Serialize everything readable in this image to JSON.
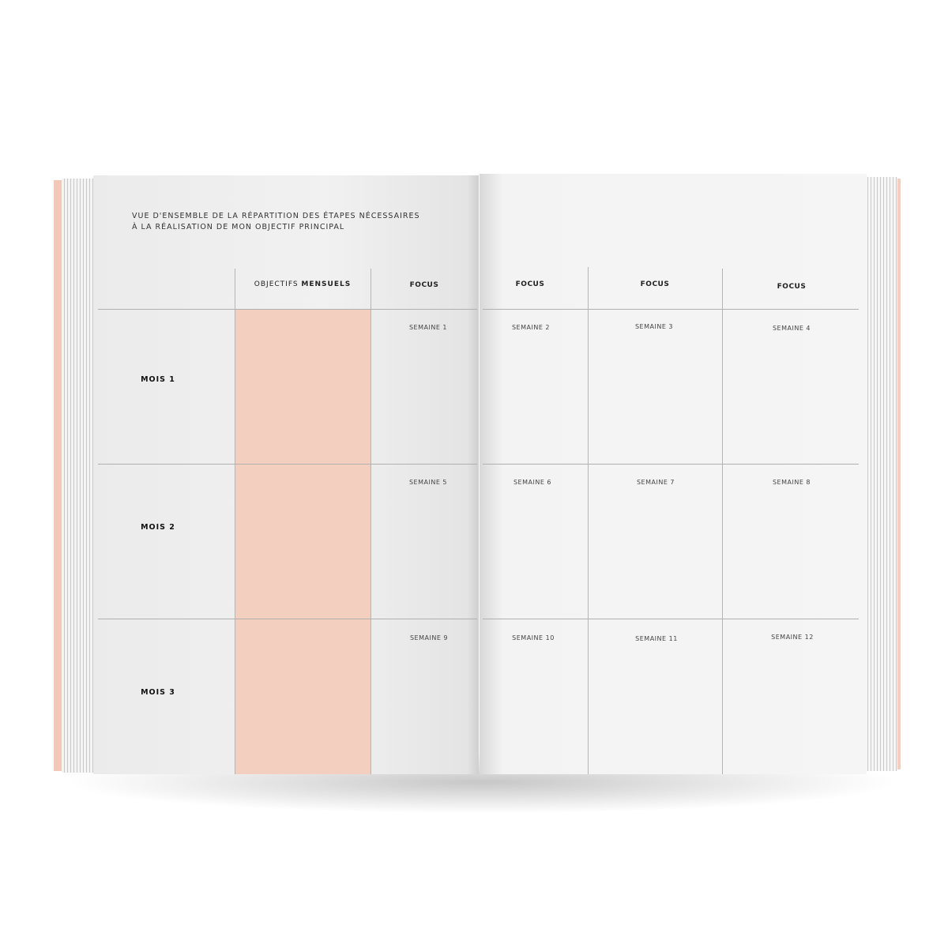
{
  "planner": {
    "title_line1": "VUE D'ENSEMBLE DE LA RÉPARTITION DES ÉTAPES NÉCESSAIRES",
    "title_line2": "À LA RÉALISATION DE MON OBJECTIF PRINCIPAL",
    "header_objectifs_light": "OBJECTIFS ",
    "header_objectifs_bold": "MENSUELS",
    "focus_headers": [
      "FOCUS",
      "FOCUS",
      "FOCUS",
      "FOCUS"
    ],
    "months": [
      "MOIS 1",
      "MOIS 2",
      "MOIS 3"
    ],
    "weeks": [
      "SEMAINE 1",
      "SEMAINE 2",
      "SEMAINE 3",
      "SEMAINE 4",
      "SEMAINE 5",
      "SEMAINE 6",
      "SEMAINE 7",
      "SEMAINE 8",
      "SEMAINE 9",
      "SEMAINE 10",
      "SEMAINE 11",
      "SEMAINE 12"
    ]
  },
  "colors": {
    "accent_pink": "#f2cfbe",
    "cover": "#f2c9b8",
    "page": "#f1f1f1"
  }
}
